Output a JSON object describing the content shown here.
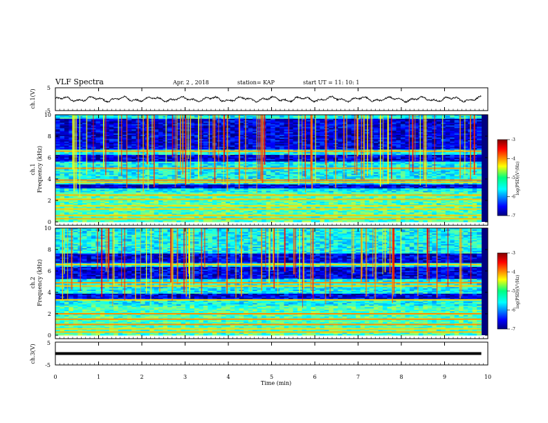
{
  "header": {
    "title": "VLF Spectra",
    "date": "Apr. 2 , 2018",
    "station": "station= KAP",
    "start_ut": "start UT =  11: 10: 1"
  },
  "panels": {
    "ch1_wave": {
      "ylabel": "ch.1(V)",
      "ytick_top": "5",
      "ytick_bottom": "-5"
    },
    "ch1_spec": {
      "ylabel_line1": "ch.1",
      "ylabel_line2": "Frequency (kHz)",
      "yticks": [
        "0",
        "2",
        "4",
        "6",
        "8",
        "10"
      ],
      "colorbar_label": "log(PSD)(V²/Hz)",
      "colorbar_ticks": [
        "-3",
        "-4",
        "-5",
        "-6",
        "-7"
      ]
    },
    "ch2_spec": {
      "ylabel_line1": "ch.2",
      "ylabel_line2": "Frequency (kHz)",
      "yticks": [
        "0",
        "2",
        "4",
        "6",
        "8",
        "10"
      ],
      "colorbar_label": "log(PSD)(V²/Hz)",
      "colorbar_ticks": [
        "-3",
        "-4",
        "-5",
        "-6",
        "-7"
      ]
    },
    "ch3_wave": {
      "ylabel": "ch.3(V)",
      "ytick_top": "5",
      "ytick_bottom": "-5"
    }
  },
  "xaxis": {
    "label": "Time (min)",
    "ticks": [
      "0",
      "1",
      "2",
      "3",
      "4",
      "5",
      "6",
      "7",
      "8",
      "9",
      "10"
    ]
  },
  "chart_data": [
    {
      "type": "line",
      "name": "ch.1 waveform",
      "xlabel": "Time (min)",
      "ylabel": "ch.1(V)",
      "xlim": [
        0,
        10
      ],
      "ylim": [
        -5,
        5
      ],
      "data_end_min": 9.85,
      "approx_level_V": 0.0,
      "approx_amplitude_V": 1.3
    },
    {
      "type": "heatmap",
      "name": "ch.1 spectrogram",
      "xlabel": "Time (min)",
      "ylabel": "Frequency (kHz)",
      "xlim": [
        0,
        10
      ],
      "ylim": [
        0,
        10
      ],
      "data_end_min": 9.85,
      "colorscale": "jet",
      "clim": [
        -7,
        -3
      ],
      "colorbar_label": "log(PSD)(V²/Hz)",
      "strong_bands_kHz": [
        0.3,
        0.6,
        1.2,
        1.5,
        2.1,
        2.5,
        3.7,
        3.9,
        5.0,
        6.6
      ],
      "quiet_bands_kHz": [
        [
          3.1,
          3.5
        ],
        [
          5.6,
          6.2
        ],
        [
          6.8,
          9.6
        ]
      ]
    },
    {
      "type": "heatmap",
      "name": "ch.2 spectrogram",
      "xlabel": "Time (min)",
      "ylabel": "Frequency (kHz)",
      "xlim": [
        0,
        10
      ],
      "ylim": [
        0,
        10
      ],
      "data_end_min": 9.85,
      "colorscale": "jet",
      "clim": [
        -7,
        -3
      ],
      "colorbar_label": "log(PSD)(V²/Hz)",
      "strong_bands_kHz": [
        0.3,
        0.6,
        1.0,
        1.5,
        2.0,
        3.3,
        4.6,
        4.9,
        6.6
      ],
      "quiet_bands_kHz": [
        [
          3.4,
          3.9
        ],
        [
          5.2,
          6.4
        ],
        [
          6.8,
          7.6
        ]
      ]
    },
    {
      "type": "line",
      "name": "ch.3 waveform",
      "xlabel": "Time (min)",
      "ylabel": "ch.3(V)",
      "xlim": [
        0,
        10
      ],
      "ylim": [
        -5,
        5
      ],
      "data_end_min": 9.85,
      "approx_level_V": 0.0
    }
  ],
  "colors": {
    "background": "#ffffff",
    "line": "#000000"
  }
}
